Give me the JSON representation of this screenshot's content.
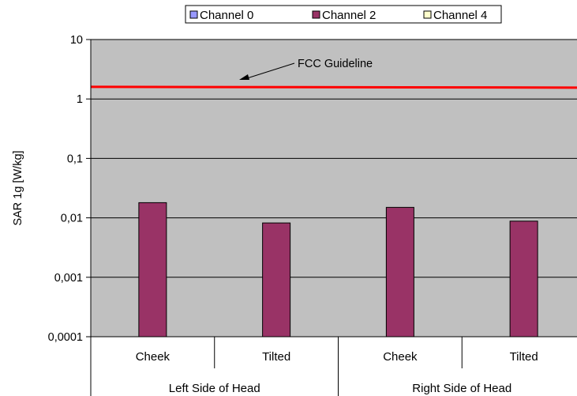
{
  "chart_data": {
    "type": "bar",
    "y_scale": "log",
    "ylim": [
      0.0001,
      10
    ],
    "ylabel": "SAR 1g [W/kg]",
    "y_ticks": [
      "10",
      "1",
      "0,1",
      "0,01",
      "0,001",
      "0,0001"
    ],
    "y_tick_values": [
      10,
      1,
      0.1,
      0.01,
      0.001,
      0.0001
    ],
    "grid": true,
    "plot_background": "#c0c0c0",
    "categories": [
      "Cheek",
      "Tilted",
      "Cheek",
      "Tilted"
    ],
    "groups": [
      {
        "label": "Left Side of Head",
        "categories": [
          "Cheek",
          "Tilted"
        ]
      },
      {
        "label": "Right Side of Head",
        "categories": [
          "Cheek",
          "Tilted"
        ]
      }
    ],
    "series": [
      {
        "name": "Channel 0",
        "color": "#9999ff",
        "values": [
          null,
          null,
          null,
          null
        ]
      },
      {
        "name": "Channel 2",
        "color": "#993366",
        "values": [
          0.018,
          0.0082,
          0.015,
          0.0088
        ]
      },
      {
        "name": "Channel 4",
        "color": "#ffffcc",
        "values": [
          null,
          null,
          null,
          null
        ]
      }
    ],
    "legend_position": "top",
    "reference_line": {
      "label": "FCC Guideline",
      "value": 1.6,
      "color": "#ff0000"
    }
  }
}
